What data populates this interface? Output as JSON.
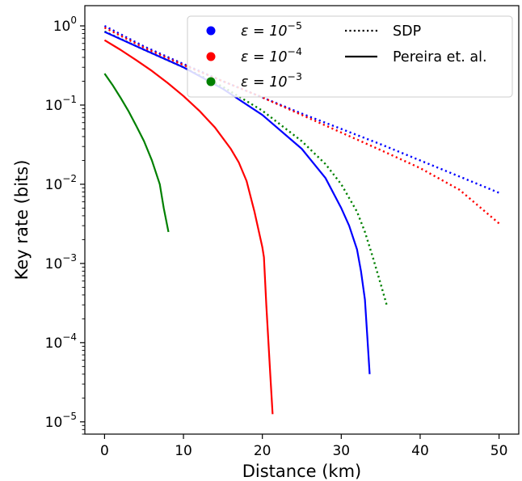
{
  "chart_data": {
    "type": "line",
    "xlabel": "Distance (km)",
    "ylabel": "Key rate (bits)",
    "x_scale": "linear",
    "y_scale": "log",
    "xlim": [
      -2.5,
      52.5
    ],
    "ylim": [
      7e-06,
      1.8
    ],
    "x_ticks": [
      0,
      10,
      20,
      30,
      40,
      50
    ],
    "x_tick_labels": [
      "0",
      "10",
      "20",
      "30",
      "40",
      "50"
    ],
    "y_ticks": [
      1e-05,
      0.0001,
      0.001,
      0.01,
      0.1,
      1
    ],
    "y_tick_labels": [
      {
        "base": "10",
        "exp": "−5"
      },
      {
        "base": "10",
        "exp": "−4"
      },
      {
        "base": "10",
        "exp": "−3"
      },
      {
        "base": "10",
        "exp": "−2"
      },
      {
        "base": "10",
        "exp": "−1"
      },
      {
        "base": "10",
        "exp": "0"
      }
    ],
    "grid": false,
    "legend_position": "top-right",
    "legend": {
      "colors": [
        {
          "base": "ε = 10",
          "exp": "−5",
          "color": "#0000ff"
        },
        {
          "base": "ε = 10",
          "exp": "−4",
          "color": "#ff0000"
        },
        {
          "base": "ε = 10",
          "exp": "−3",
          "color": "#008000"
        }
      ],
      "styles": [
        {
          "label": "SDP",
          "dash": "dotted"
        },
        {
          "label": "Pereira et. al.",
          "dash": "solid"
        }
      ]
    },
    "series": [
      {
        "color": "#0000ff",
        "method": "SDP",
        "x": [
          0,
          5,
          10,
          15,
          20,
          25,
          30,
          35,
          40,
          45,
          50
        ],
        "y": [
          1.0,
          0.55,
          0.33,
          0.2,
          0.125,
          0.078,
          0.05,
          0.032,
          0.02,
          0.0125,
          0.0078
        ]
      },
      {
        "color": "#ff0000",
        "method": "SDP",
        "x": [
          0,
          5,
          10,
          15,
          20,
          25,
          30,
          35,
          40,
          45,
          50
        ],
        "y": [
          0.95,
          0.53,
          0.32,
          0.2,
          0.125,
          0.075,
          0.045,
          0.027,
          0.016,
          0.0085,
          0.0032
        ]
      },
      {
        "color": "#008000",
        "method": "SDP",
        "x": [
          0,
          5,
          10,
          15,
          20,
          25,
          28,
          30,
          32,
          33,
          34,
          35,
          35.8
        ],
        "y": [
          0.85,
          0.5,
          0.3,
          0.17,
          0.085,
          0.035,
          0.018,
          0.01,
          0.0045,
          0.0025,
          0.0012,
          0.00055,
          0.00029
        ]
      },
      {
        "color": "#ff0000",
        "method": "Pereira et. al.",
        "x": [
          0,
          2,
          4,
          6,
          8,
          10,
          12,
          14,
          16,
          17,
          18,
          19,
          20,
          20.2,
          20.5,
          21,
          21.3
        ],
        "y": [
          0.66,
          0.5,
          0.37,
          0.27,
          0.19,
          0.13,
          0.085,
          0.052,
          0.028,
          0.019,
          0.011,
          0.0045,
          0.0016,
          0.0012,
          0.0003,
          4e-05,
          1.25e-05
        ]
      },
      {
        "color": "#008000",
        "method": "Pereira et. al.",
        "x": [
          0,
          1,
          2,
          3,
          4,
          5,
          6,
          7,
          7.5,
          8.1
        ],
        "y": [
          0.25,
          0.18,
          0.125,
          0.085,
          0.055,
          0.035,
          0.02,
          0.01,
          0.005,
          0.0025
        ]
      },
      {
        "color": "#0000ff",
        "method": "Pereira et. al.",
        "x": [
          0,
          5,
          10,
          15,
          20,
          25,
          28,
          30,
          31,
          32,
          32.5,
          33,
          33.3,
          33.6
        ],
        "y": [
          0.84,
          0.5,
          0.3,
          0.16,
          0.075,
          0.028,
          0.012,
          0.005,
          0.003,
          0.0015,
          0.0008,
          0.00035,
          0.00012,
          4e-05
        ]
      }
    ]
  }
}
